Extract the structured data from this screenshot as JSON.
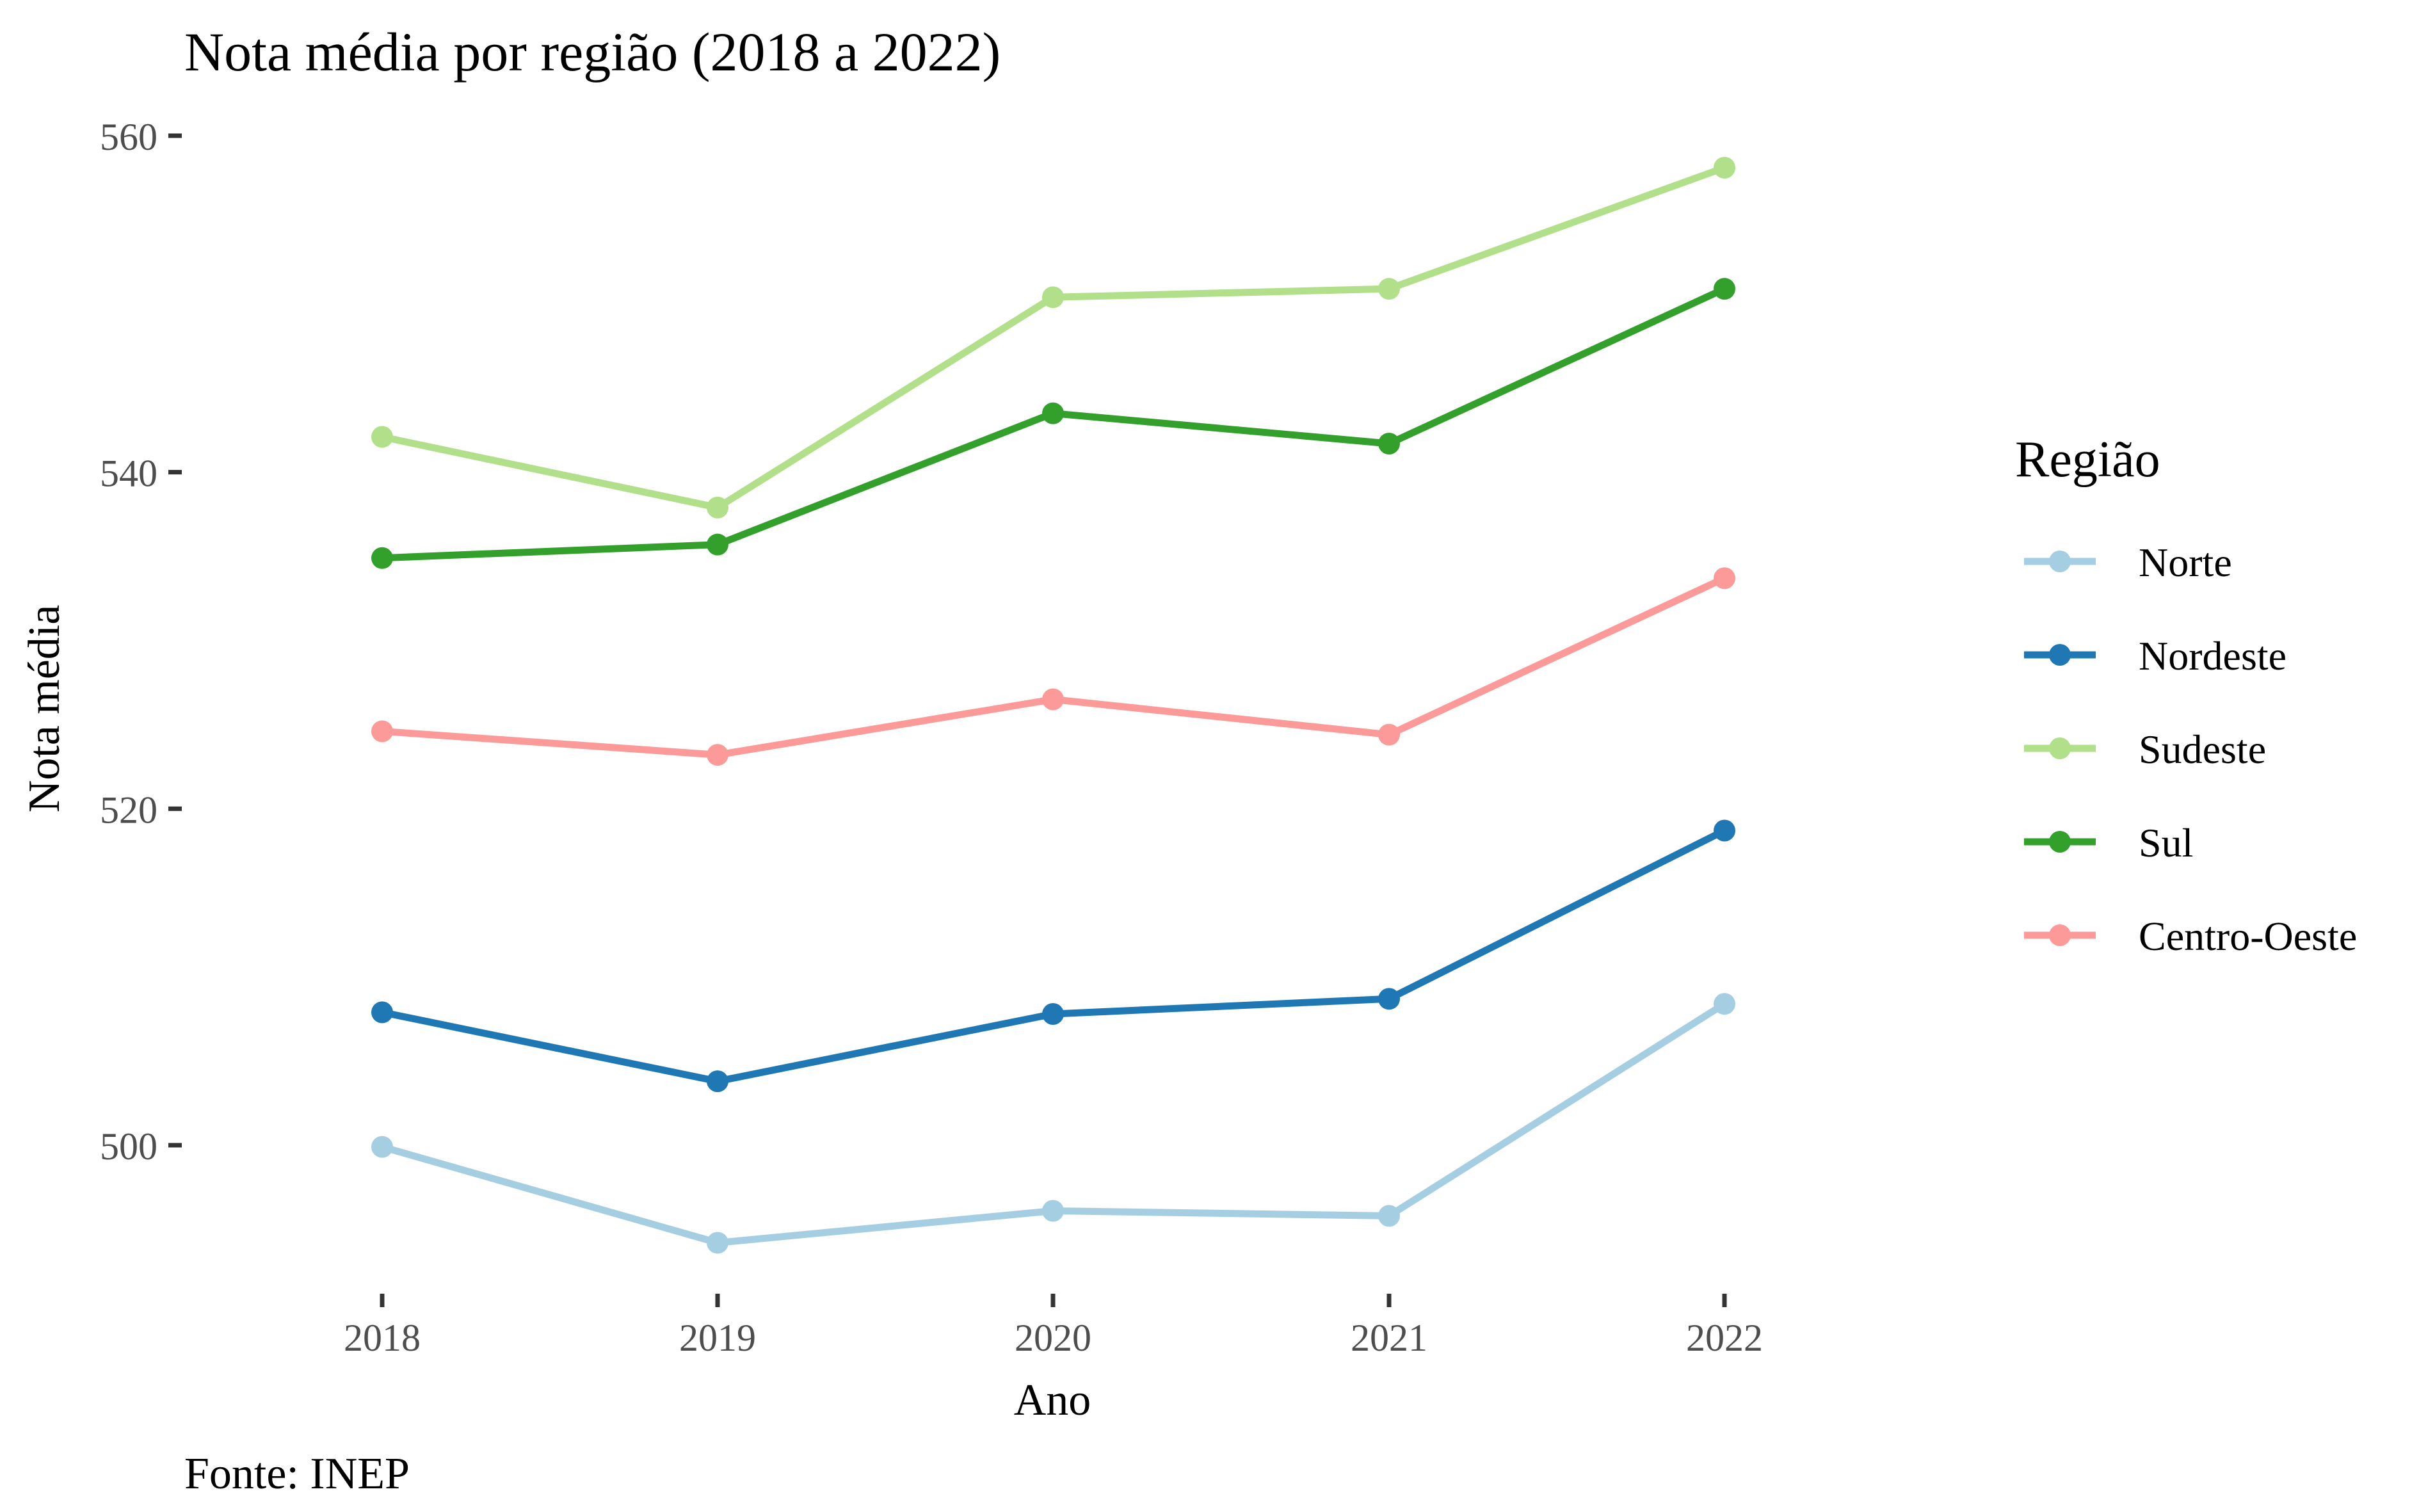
{
  "chart_data": {
    "type": "line",
    "title": "Nota média por região (2018 a 2022)",
    "xlabel": "Ano",
    "ylabel": "Nota média",
    "caption": "Fonte: INEP",
    "legend_title": "Região",
    "legend_position": "right",
    "grid": false,
    "x": [
      "2018",
      "2019",
      "2020",
      "2021",
      "2022"
    ],
    "x_tick_labels": [
      "2018",
      "2019",
      "2020",
      "2021",
      "2022"
    ],
    "y_ticks": [
      500,
      520,
      540,
      560
    ],
    "y_tick_labels": [
      "500",
      "520",
      "540",
      "560"
    ],
    "ylim": [
      492.5,
      560
    ],
    "series": [
      {
        "name": "Norte",
        "color": "#A6CEE3",
        "values": [
          499.9,
          494.2,
          496.1,
          495.8,
          508.4
        ]
      },
      {
        "name": "Nordeste",
        "color": "#1F78B4",
        "values": [
          507.9,
          503.8,
          507.8,
          508.7,
          518.7
        ]
      },
      {
        "name": "Sudeste",
        "color": "#B2DF8A",
        "values": [
          542.1,
          537.9,
          550.4,
          550.9,
          558.1
        ]
      },
      {
        "name": "Sul",
        "color": "#33A02C",
        "values": [
          534.9,
          535.7,
          543.5,
          541.7,
          550.9
        ]
      },
      {
        "name": "Centro-Oeste",
        "color": "#FB9A99",
        "values": [
          524.6,
          523.2,
          526.5,
          524.4,
          533.7
        ]
      }
    ]
  }
}
